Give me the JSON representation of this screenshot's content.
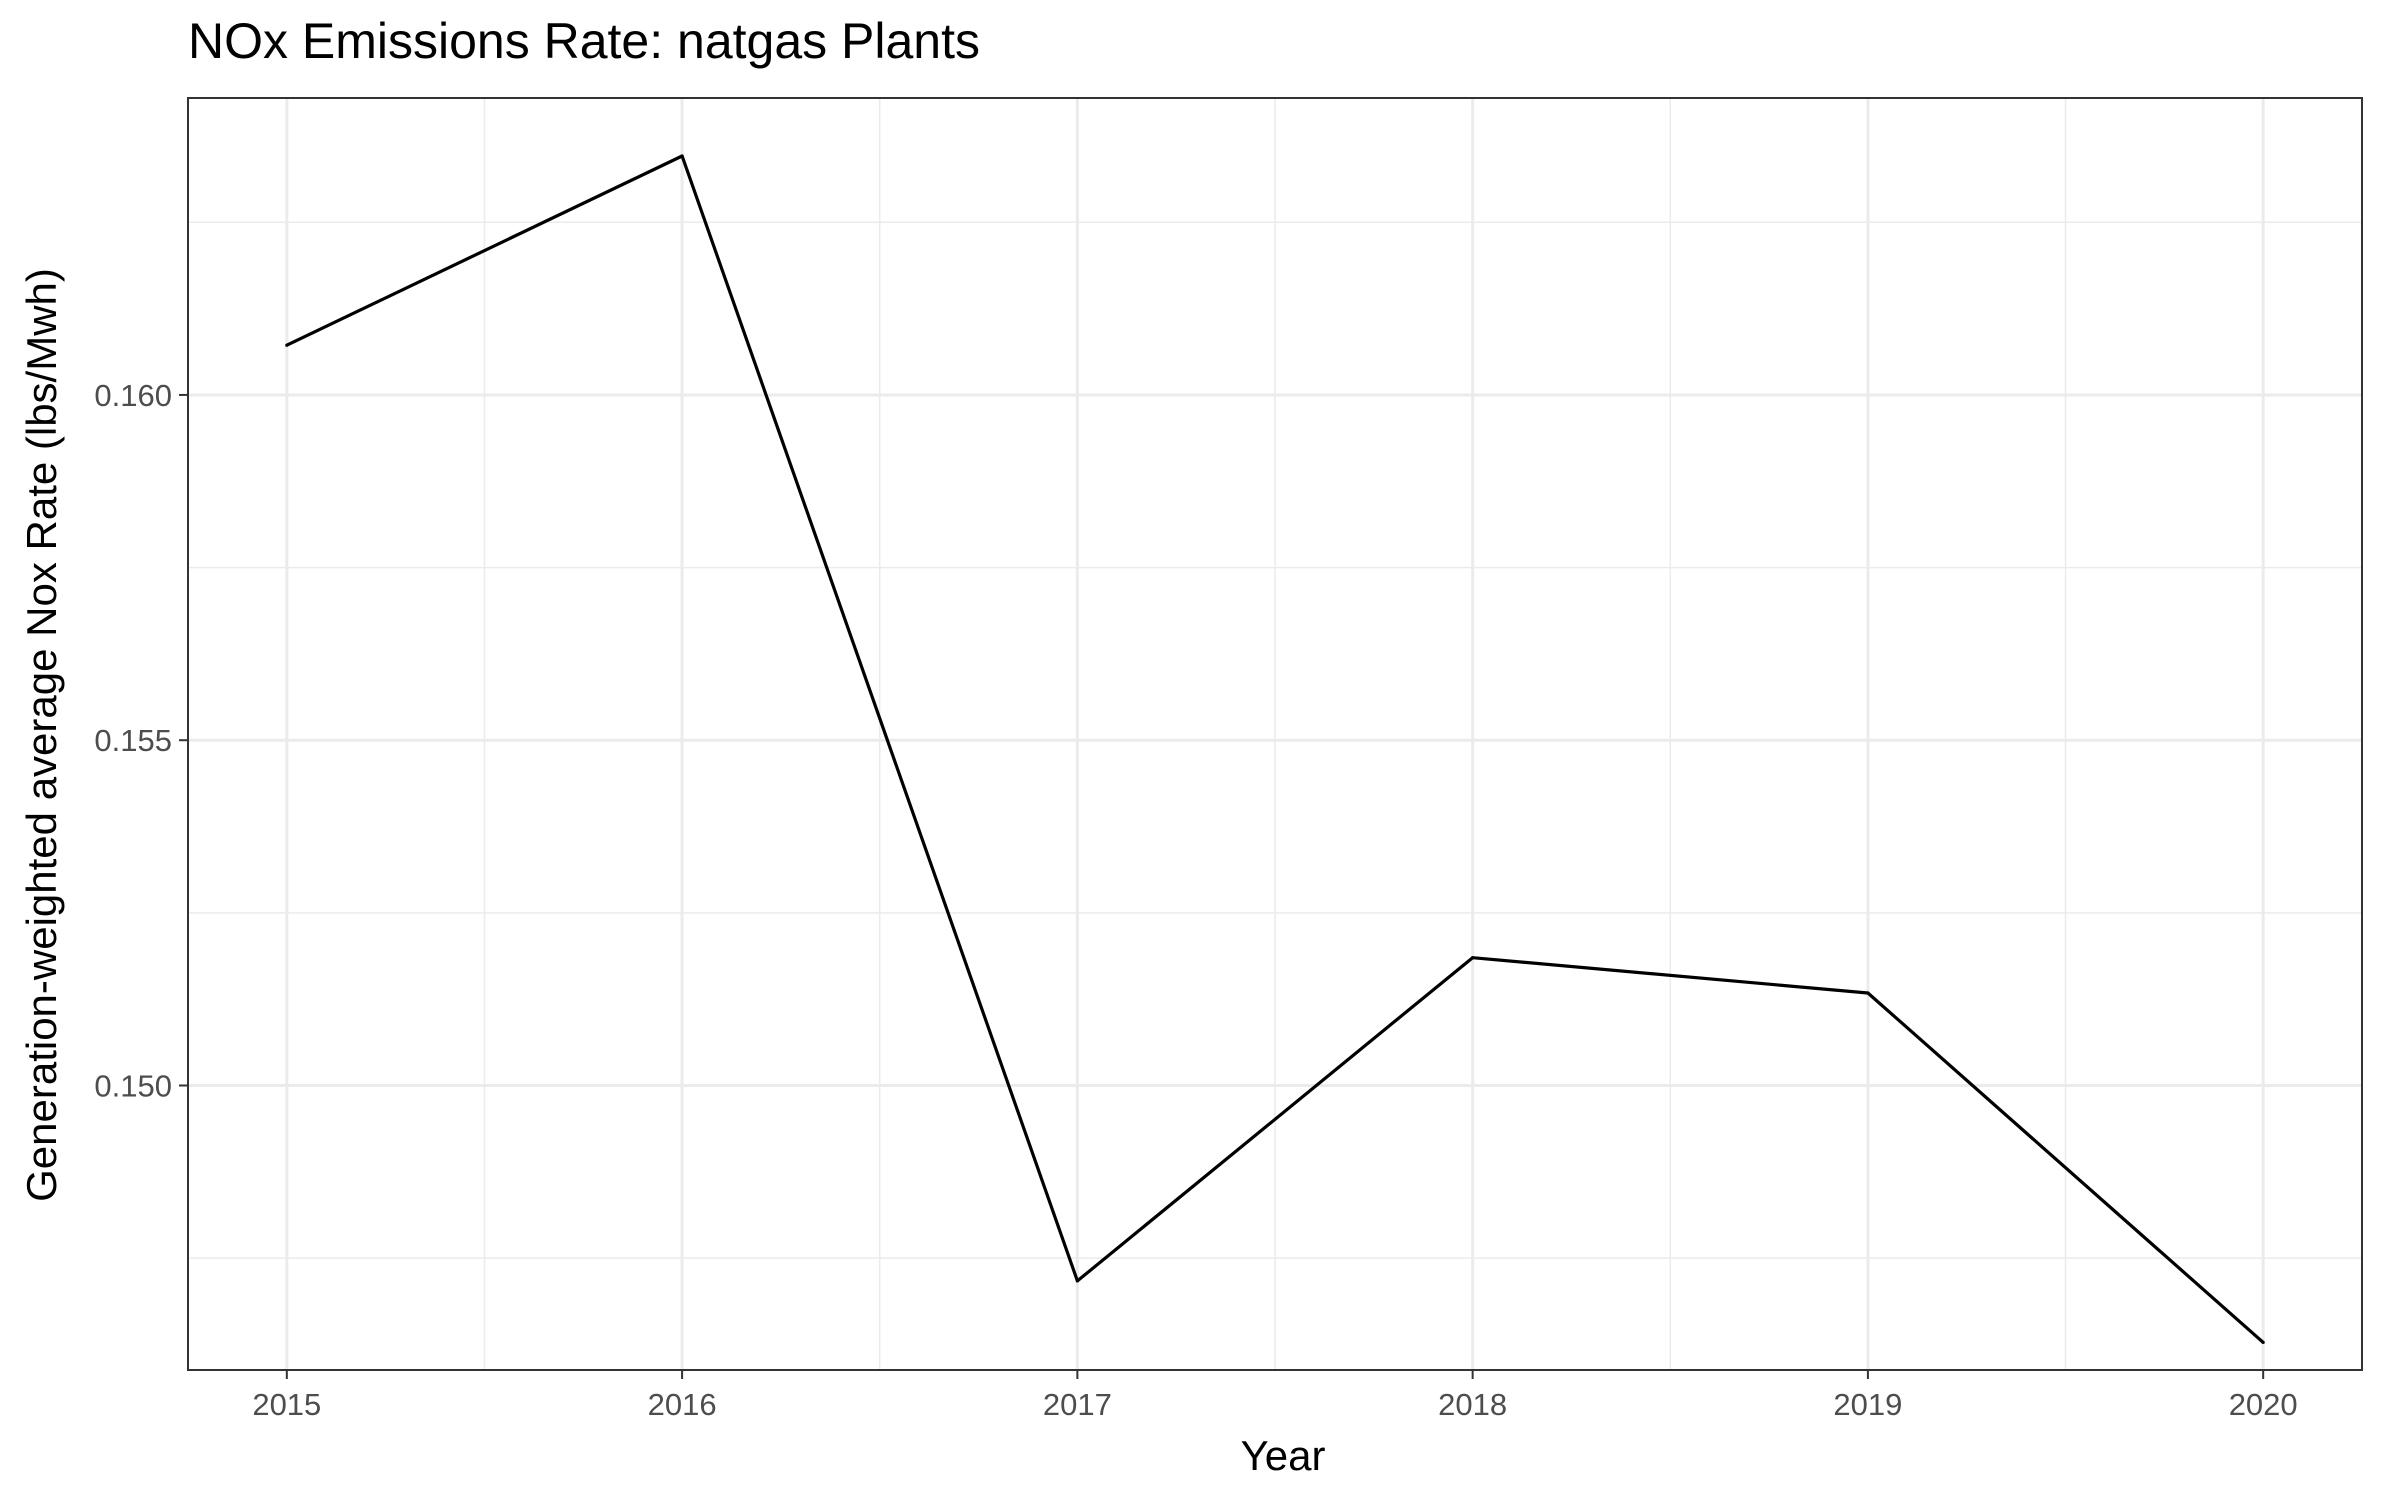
{
  "chart_data": {
    "type": "line",
    "title": "NOx Emissions Rate: natgas Plants",
    "xlabel": "Year",
    "ylabel": "Generation-weighted average Nox Rate (lbs/Mwh)",
    "x": [
      2015,
      2016,
      2017,
      2018,
      2019,
      2020
    ],
    "x_tick_labels": [
      "2015",
      "2016",
      "2017",
      "2018",
      "2019",
      "2020"
    ],
    "y_ticks": [
      0.15,
      0.155,
      0.16
    ],
    "y_tick_labels": [
      "0.150",
      "0.155",
      "0.160"
    ],
    "series": [
      {
        "values": [
          0.16072,
          0.16346,
          0.14717,
          0.15185,
          0.15134,
          0.14628
        ]
      }
    ],
    "xlim": [
      2014.75,
      2020.25
    ],
    "ylim": [
      0.14588,
      0.1643
    ],
    "grid": true,
    "line_color": "#000000",
    "grid_color": "#ebebeb",
    "tick_color": "#4d4d4d"
  }
}
